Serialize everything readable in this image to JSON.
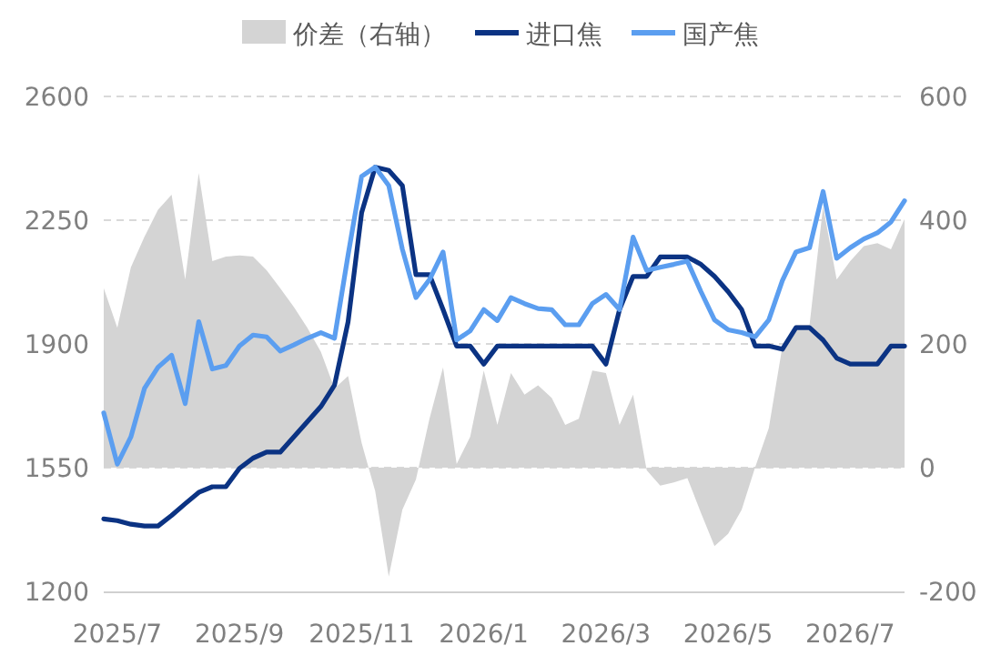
{
  "chart_data": {
    "type": "line",
    "legend": "top",
    "grid": "y",
    "categories": [
      null,
      "2025/7",
      null,
      null,
      null,
      null,
      null,
      null,
      null,
      null,
      "2025/9",
      null,
      null,
      null,
      null,
      null,
      null,
      null,
      null,
      "2025/11",
      null,
      null,
      null,
      null,
      null,
      null,
      null,
      null,
      "2026/1",
      null,
      null,
      null,
      null,
      null,
      null,
      null,
      null,
      "2026/3",
      null,
      null,
      null,
      null,
      null,
      null,
      null,
      null,
      "2026/5",
      null,
      null,
      null,
      null,
      null,
      null,
      null,
      null,
      "2026/7",
      null,
      null,
      null,
      null
    ],
    "series": [
      {
        "name": "价差（右轴）",
        "type": "area",
        "axis": "y2",
        "color": "#d4d4d4",
        "values": [
          290,
          226,
          324,
          373,
          417,
          441,
          304,
          476,
          334,
          341,
          343,
          341,
          319,
          290,
          260,
          226,
          187,
          128,
          148,
          40,
          -38,
          -176,
          -68,
          -19,
          79,
          162,
          6,
          50,
          157,
          69,
          153,
          118,
          133,
          113,
          69,
          79,
          157,
          153,
          69,
          118,
          -4,
          -29,
          -24,
          -17,
          -73,
          -127,
          -107,
          -68,
          1,
          64,
          196,
          231,
          231,
          422,
          304,
          334,
          358,
          363,
          353,
          402
        ]
      },
      {
        "name": "进口焦",
        "color": "#0b3383",
        "values": [
          1405,
          1400,
          1390,
          1385,
          1385,
          1415,
          1448,
          1480,
          1496,
          1496,
          1548,
          1577,
          1594,
          1594,
          1637,
          1680,
          1723,
          1783,
          1962,
          2271,
          2400,
          2391,
          2348,
          2096,
          2096,
          1997,
          1894,
          1894,
          1843,
          1894,
          1894,
          1894,
          1894,
          1894,
          1894,
          1894,
          1894,
          1843,
          1997,
          2091,
          2091,
          2146,
          2146,
          2146,
          2125,
          2091,
          2048,
          1997,
          1894,
          1894,
          1885,
          1946,
          1946,
          1911,
          1860,
          1843,
          1843,
          1843,
          1894,
          1894
        ]
      },
      {
        "name": "国产焦",
        "color": "#5b9ef0",
        "values": [
          1705,
          1560,
          1637,
          1774,
          1834,
          1868,
          1731,
          1963,
          1829,
          1839,
          1894,
          1925,
          1920,
          1880,
          1897,
          1916,
          1932,
          1916,
          2151,
          2374,
          2400,
          2348,
          2168,
          2031,
          2082,
          2160,
          1911,
          1937,
          1997,
          1966,
          2031,
          2014,
          2000,
          1997,
          1954,
          1954,
          2014,
          2040,
          1997,
          2202,
          2108,
          2117,
          2125,
          2134,
          2048,
          1968,
          1940,
          1932,
          1920,
          1968,
          2079,
          2160,
          2172,
          2331,
          2142,
          2172,
          2197,
          2214,
          2245,
          2305
        ]
      }
    ],
    "ylim": [
      1200,
      2600
    ],
    "yticks": [
      1200,
      1550,
      1900,
      2250,
      2600
    ],
    "y2lim": [
      -200,
      600
    ],
    "y2ticks": [
      -200,
      0,
      200,
      400,
      600
    ]
  }
}
